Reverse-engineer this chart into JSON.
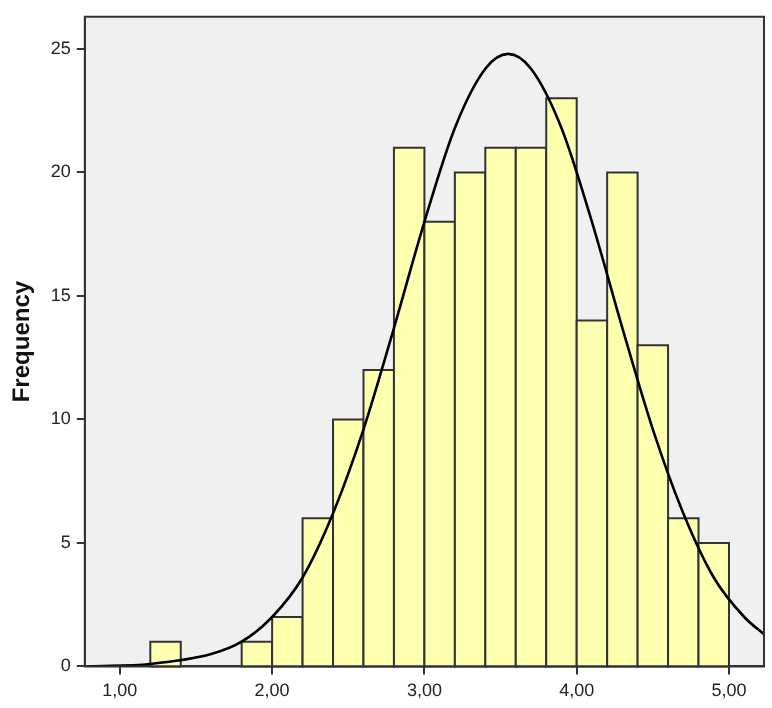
{
  "chart_data": {
    "type": "histogram",
    "ylabel": "Frequency",
    "series": [
      {
        "color": "#ffffb0",
        "bins": [
          1.2,
          1.4,
          1.6,
          1.8,
          2.0,
          2.2,
          2.4,
          2.6,
          2.8,
          3.0,
          3.2,
          3.4,
          3.6,
          3.8,
          4.0,
          4.2,
          4.4,
          4.6,
          4.8,
          5.0
        ],
        "values": [
          1,
          0,
          0,
          1,
          2,
          6,
          10,
          12,
          21,
          18,
          20,
          21,
          21,
          23,
          14,
          20,
          13,
          6,
          5
        ]
      },
      {
        "type": "line",
        "color": "#000000",
        "x": [
          0.8,
          1.2,
          1.6,
          1.8,
          2.0,
          2.2,
          2.4,
          2.6,
          2.8,
          3.0,
          3.2,
          3.4,
          3.55,
          3.7,
          3.9,
          4.1,
          4.3,
          4.5,
          4.7,
          4.9,
          5.1,
          5.23
        ],
        "values": [
          0,
          0.1,
          0.5,
          1,
          2,
          3.6,
          6.2,
          9.6,
          13.7,
          18,
          21.8,
          24.2,
          24.8,
          24.2,
          21.8,
          18,
          13.7,
          9.6,
          6.2,
          3.6,
          2,
          1.3
        ]
      }
    ],
    "xlim": [
      0.77,
      5.23
    ],
    "xticks": [
      {
        "value": 1,
        "label": "1,00"
      },
      {
        "value": 2,
        "label": "2,00"
      },
      {
        "value": 3,
        "label": "3,00"
      },
      {
        "value": 4,
        "label": "4,00"
      },
      {
        "value": 5,
        "label": "5,00"
      }
    ],
    "ylim": [
      0,
      26.3
    ],
    "yticks": [
      0,
      5,
      10,
      15,
      20,
      25
    ],
    "grid": false,
    "legend": false,
    "marker": "none"
  }
}
